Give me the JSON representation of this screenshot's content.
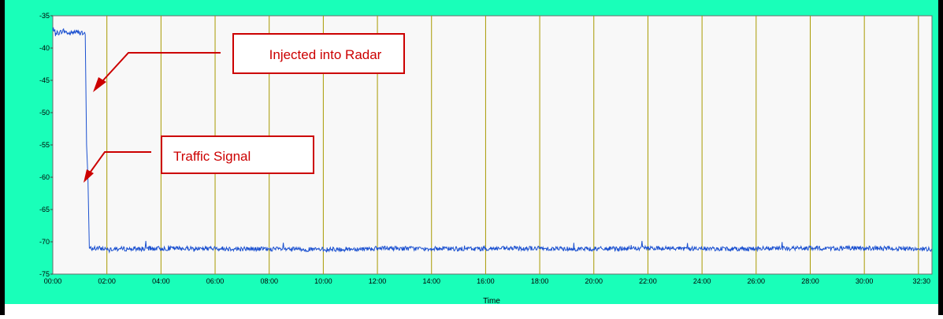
{
  "chart_data": {
    "type": "line",
    "title": "",
    "xlabel": "Time",
    "ylabel": "",
    "x_ticks": [
      "00:00",
      "02:00",
      "04:00",
      "06:00",
      "08:00",
      "10:00",
      "12:00",
      "14:00",
      "16:00",
      "18:00",
      "20:00",
      "22:00",
      "24:00",
      "26:00",
      "28:00",
      "30:00",
      "32:30"
    ],
    "y_ticks": [
      "-35",
      "-40",
      "-45",
      "-50",
      "-55",
      "-60",
      "-65",
      "-70",
      "-75"
    ],
    "xlim_minutes": [
      0,
      32.5
    ],
    "ylim": [
      -75,
      -35
    ],
    "grid": "vertical",
    "series": [
      {
        "color": "#1a50d0",
        "points_minutes": [
          [
            0,
            -37.4
          ],
          [
            0.2,
            -37.7
          ],
          [
            0.4,
            -37.3
          ],
          [
            0.6,
            -37.8
          ],
          [
            0.8,
            -37.5
          ],
          [
            1.0,
            -37.6
          ],
          [
            1.2,
            -37.9
          ],
          [
            1.25,
            -55.0
          ],
          [
            1.3,
            -60.0
          ],
          [
            1.35,
            -71.0
          ],
          [
            2.5,
            -71.1
          ],
          [
            5,
            -71.0
          ],
          [
            7.5,
            -71.1
          ],
          [
            10,
            -71.2
          ],
          [
            12.5,
            -71.0
          ],
          [
            15,
            -71.1
          ],
          [
            17.5,
            -71.0
          ],
          [
            20,
            -71.1
          ],
          [
            22.5,
            -71.0
          ],
          [
            25,
            -71.1
          ],
          [
            27.5,
            -71.0
          ],
          [
            30,
            -71.0
          ],
          [
            32.5,
            -71.1
          ]
        ],
        "noise": 0.35
      }
    ],
    "annotations": [
      {
        "text": "Injected into Radar"
      },
      {
        "text": "Traffic Signal"
      }
    ]
  },
  "colors": {
    "frame": "#19ffb9",
    "plot_bg": "#f8f8f8",
    "grid": "#a89a00",
    "annotation": "#cc0000",
    "line": "#1a50d0"
  }
}
